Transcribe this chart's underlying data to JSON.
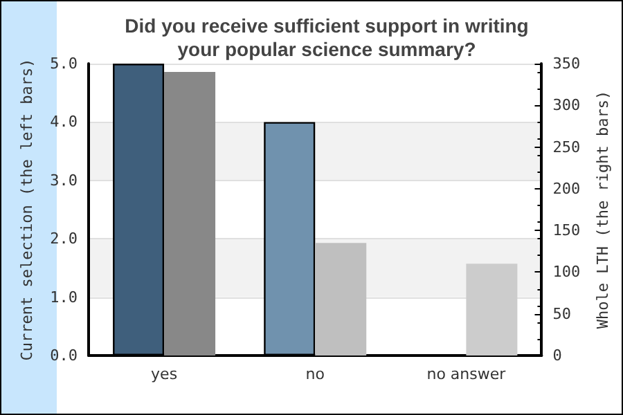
{
  "chart_data": {
    "type": "bar",
    "title": "Did you receive sufficient support in writing\nyour popular science summary?",
    "categories": [
      "yes",
      "no",
      "no answer"
    ],
    "series": [
      {
        "colors": [
          "#3f5f7c",
          "#7092ae",
          null
        ],
        "values": [
          5.0,
          4.0,
          null
        ]
      },
      {
        "axis": "y2",
        "colors": [
          "#888888",
          "#bfbfbf",
          "#cccccc"
        ],
        "values": [
          340,
          135,
          110
        ]
      }
    ],
    "ylabel": "Current selection (the left bars)",
    "y2label": "Whole LTH (the right bars)",
    "ylim": [
      0,
      5
    ],
    "yticks": [
      {
        "value": 0,
        "label": "0.0"
      },
      {
        "value": 1,
        "label": "1.0"
      },
      {
        "value": 2,
        "label": "2.0"
      },
      {
        "value": 3,
        "label": "3.0"
      },
      {
        "value": 4,
        "label": "4.0"
      },
      {
        "value": 5,
        "label": "5.0"
      }
    ],
    "y2lim": [
      0,
      350
    ],
    "y2ticks": [
      0,
      50,
      100,
      150,
      200,
      250,
      300,
      350
    ],
    "grid": "y"
  }
}
